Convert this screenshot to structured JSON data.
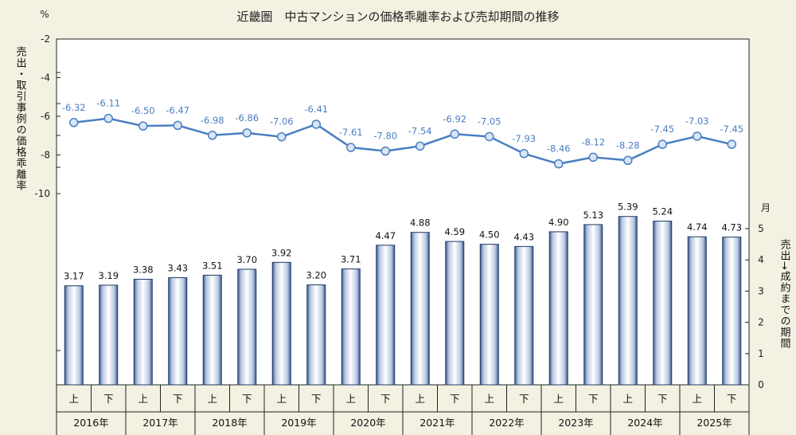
{
  "chart_data": {
    "type": "bar+line",
    "title": "近畿圏　中古マンションの価格乖離率および売却期間の推移",
    "left_axis": {
      "unit": "%",
      "label": "売出・取引事例の価格乖離率",
      "ticks": [
        "-2",
        "-4",
        "-6",
        "-8",
        "-10"
      ],
      "range": [
        -2,
        -10
      ]
    },
    "right_axis": {
      "unit": "月",
      "label": "売出→成約までの期間",
      "ticks": [
        "0",
        "1",
        "2",
        "3",
        "4",
        "5"
      ],
      "range": [
        0,
        5
      ]
    },
    "halves": [
      "上",
      "下",
      "上",
      "下",
      "上",
      "下",
      "上",
      "下",
      "上",
      "下",
      "上",
      "下",
      "上",
      "下",
      "上",
      "下",
      "上",
      "下",
      "上",
      "下"
    ],
    "years": [
      "2016年",
      "2017年",
      "2018年",
      "2019年",
      "2020年",
      "2021年",
      "2022年",
      "2023年",
      "2024年",
      "2025年"
    ],
    "line_series": {
      "values": [
        -6.32,
        -6.11,
        -6.5,
        -6.47,
        -6.98,
        -6.86,
        -7.06,
        -6.41,
        -7.61,
        -7.8,
        -7.54,
        -6.92,
        -7.05,
        -7.93,
        -8.46,
        -8.12,
        -8.28,
        -7.45,
        -7.03,
        -7.45
      ],
      "labels": [
        "-6.32",
        "-6.11",
        "-6.50",
        "-6.47",
        "-6.98",
        "-6.86",
        "-7.06",
        "-6.41",
        "-7.61",
        "-7.80",
        "-7.54",
        "-6.92",
        "-7.05",
        "-7.93",
        "-8.46",
        "-8.12",
        "-8.28",
        "-7.45",
        "-7.03",
        "-7.45"
      ],
      "color": "#4a7fc1"
    },
    "bar_series": {
      "values": [
        3.17,
        3.19,
        3.38,
        3.43,
        3.51,
        3.7,
        3.92,
        3.2,
        3.71,
        4.47,
        4.88,
        4.59,
        4.5,
        4.43,
        4.9,
        5.13,
        5.39,
        5.24,
        4.74,
        4.73
      ],
      "labels": [
        "3.17",
        "3.19",
        "3.38",
        "3.43",
        "3.51",
        "3.70",
        "3.92",
        "3.20",
        "3.71",
        "4.47",
        "4.88",
        "4.59",
        "4.50",
        "4.43",
        "4.90",
        "5.13",
        "5.39",
        "5.24",
        "4.74",
        "4.73"
      ],
      "color": "#3a5a8c"
    }
  }
}
